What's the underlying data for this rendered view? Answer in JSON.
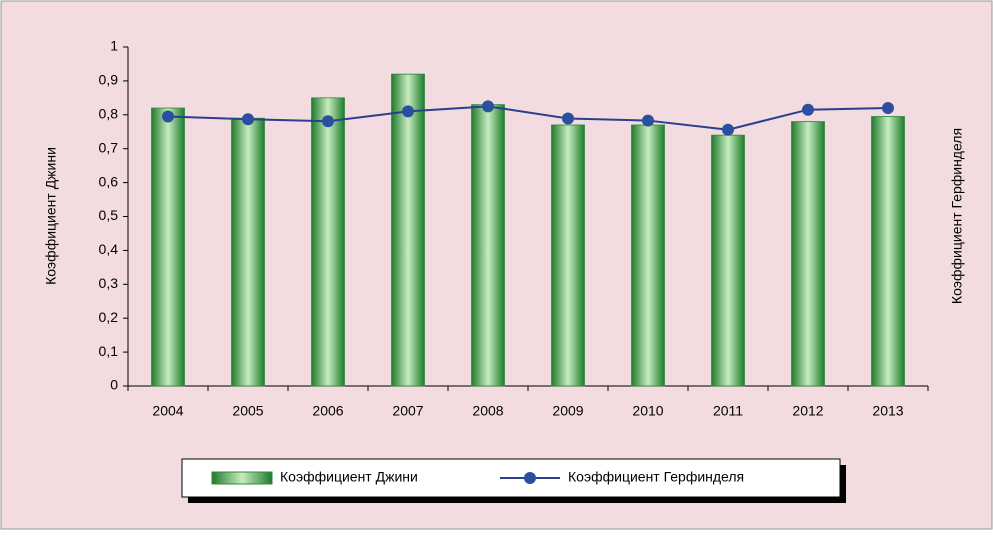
{
  "chart_data": {
    "type": "bar",
    "ylabel": "Коэффициент Джини",
    "y2label": "Коэффициент Герфинделя",
    "categories": [
      "2004",
      "2005",
      "2006",
      "2007",
      "2008",
      "2009",
      "2010",
      "2011",
      "2012",
      "2013"
    ],
    "series": [
      {
        "name": "Коэффициент Джини",
        "type": "bar",
        "color": "#2e8b3a",
        "values": [
          0.82,
          0.79,
          0.85,
          0.92,
          0.83,
          0.77,
          0.77,
          0.74,
          0.78,
          0.795
        ]
      },
      {
        "name": "Коэффициент Герфинделя",
        "type": "line",
        "color": "#2b3f8f",
        "values": [
          0.795,
          0.787,
          0.781,
          0.81,
          0.825,
          0.789,
          0.783,
          0.756,
          0.815,
          0.82
        ]
      }
    ],
    "ylim": [
      0,
      1
    ],
    "yticks": [
      0,
      {
        "value": 0.1,
        "label": "0,1"
      },
      {
        "value": 0.2,
        "label": "0,2"
      },
      {
        "value": 0.3,
        "label": "0,3"
      },
      {
        "value": 0.4,
        "label": "0,4"
      },
      {
        "value": 0.5,
        "label": "0,5"
      },
      {
        "value": 0.6,
        "label": "0,6"
      },
      {
        "value": 0.7,
        "label": "0,7"
      },
      {
        "value": 0.8,
        "label": "0,8"
      },
      {
        "value": 0.9,
        "label": "0,9"
      },
      1
    ],
    "legend": "bottom"
  }
}
